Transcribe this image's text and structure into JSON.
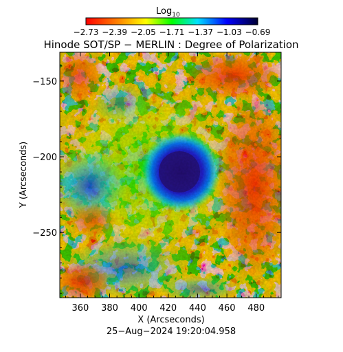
{
  "colorbar": {
    "title": "Log",
    "title_sub": "10",
    "ticks": [
      "−2.73",
      "−2.39",
      "−2.05",
      "−1.71",
      "−1.37",
      "−1.03",
      "−0.69"
    ],
    "colors": [
      "#ff0000",
      "#ff8c00",
      "#ffff00",
      "#00ff00",
      "#00e0ff",
      "#0000ff",
      "#000033"
    ]
  },
  "title": "Hinode SOT/SP − MERLIN : Degree of Polarization",
  "axes": {
    "xlabel": "X (Arcseconds)",
    "ylabel": "Y (Arcseconds)",
    "xticks": [
      "360",
      "380",
      "400",
      "420",
      "440",
      "460",
      "480"
    ],
    "yticks": [
      "−150",
      "−200",
      "−250"
    ]
  },
  "timestamp": "25−Aug−2024 19:20:04.958",
  "chart_data": {
    "type": "heatmap",
    "title": "Hinode SOT/SP − MERLIN : Degree of Polarization",
    "xlabel": "X (Arcseconds)",
    "ylabel": "Y (Arcseconds)",
    "xlim": [
      346,
      497
    ],
    "ylim": [
      -293,
      -131
    ],
    "color_scale": "Log10",
    "clim": [
      -2.73,
      -0.69
    ],
    "date": "25−Aug−2024 19:20:04.958"
  }
}
